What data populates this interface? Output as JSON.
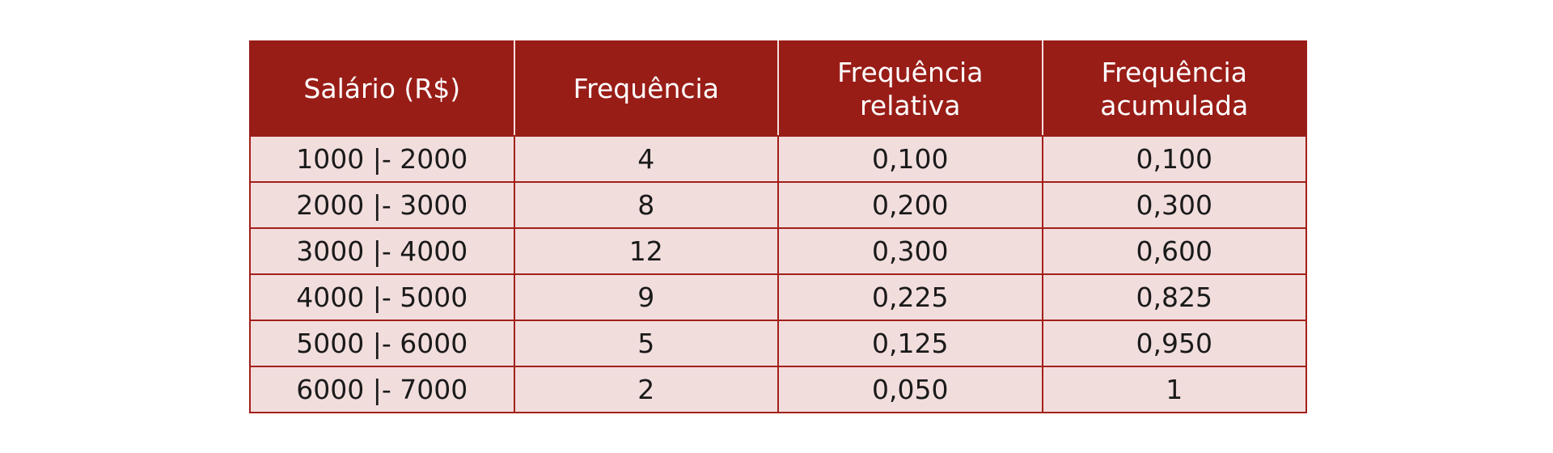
{
  "table": {
    "headers": [
      [
        "Salário (R$)"
      ],
      [
        "Frequência"
      ],
      [
        "Frequência",
        "relativa"
      ],
      [
        "Frequência",
        "acumulada"
      ]
    ],
    "rows": [
      [
        "1000 |- 2000",
        "4",
        "0,100",
        "0,100"
      ],
      [
        "2000 |- 3000",
        "8",
        "0,200",
        "0,300"
      ],
      [
        "3000 |- 4000",
        "12",
        "0,300",
        "0,600"
      ],
      [
        "4000 |- 5000",
        "9",
        "0,225",
        "0,825"
      ],
      [
        "5000 |- 6000",
        "5",
        "0,125",
        "0,950"
      ],
      [
        "6000 |- 7000",
        "2",
        "0,050",
        "1"
      ]
    ]
  },
  "colors": {
    "header_bg": "#991d17",
    "header_text": "#ffffff",
    "cell_bg": "#f2dddd",
    "border": "#a3201a"
  }
}
